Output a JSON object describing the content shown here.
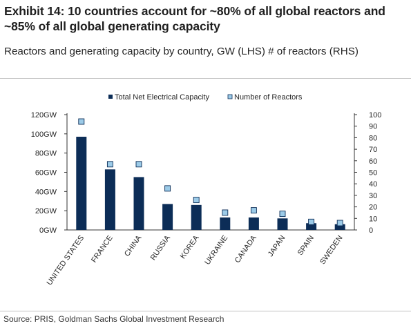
{
  "title": "Exhibit 14: 10 countries account for ~80% of all global reactors and ~85% of all global generating capacity",
  "subtitle": "Reactors and generating capacity by country, GW (LHS) # of reactors (RHS)",
  "source": "Source: PRIS, Goldman Sachs Global Investment Research",
  "colors": {
    "bar": "#0c2d57",
    "marker_fill": "#9ccbe8",
    "marker_stroke": "#0c2d57",
    "axis": "#333333",
    "text": "#262626"
  },
  "chart_data": {
    "type": "bar",
    "categories": [
      "UNITED STATES",
      "FRANCE",
      "CHINA",
      "RUSSIA",
      "KOREA",
      "UKRAINE",
      "CANADA",
      "JAPAN",
      "SPAIN",
      "SWEDEN"
    ],
    "series": [
      {
        "name": "Total Net Electrical Capacity",
        "type": "bar",
        "axis": "left",
        "unit": "GW",
        "values": [
          97,
          63,
          55,
          27,
          26,
          13,
          13,
          12,
          7,
          6
        ]
      },
      {
        "name": "Number of Reactors",
        "type": "marker",
        "axis": "right",
        "values": [
          94,
          57,
          57,
          36,
          26,
          15,
          17,
          14,
          7,
          6
        ]
      }
    ],
    "y_left": {
      "ylim": [
        0,
        120
      ],
      "ticks": [
        0,
        20,
        40,
        60,
        80,
        100,
        120
      ],
      "tick_labels": [
        "0GW",
        "20GW",
        "40GW",
        "60GW",
        "80GW",
        "100GW",
        "120GW"
      ]
    },
    "y_right": {
      "ylim": [
        0,
        100
      ],
      "ticks": [
        0,
        10,
        20,
        30,
        40,
        50,
        60,
        70,
        80,
        90,
        100
      ],
      "tick_labels": [
        "0",
        "10",
        "20",
        "30",
        "40",
        "50",
        "60",
        "70",
        "80",
        "90",
        "100"
      ]
    },
    "legend": "top",
    "grid": false
  }
}
